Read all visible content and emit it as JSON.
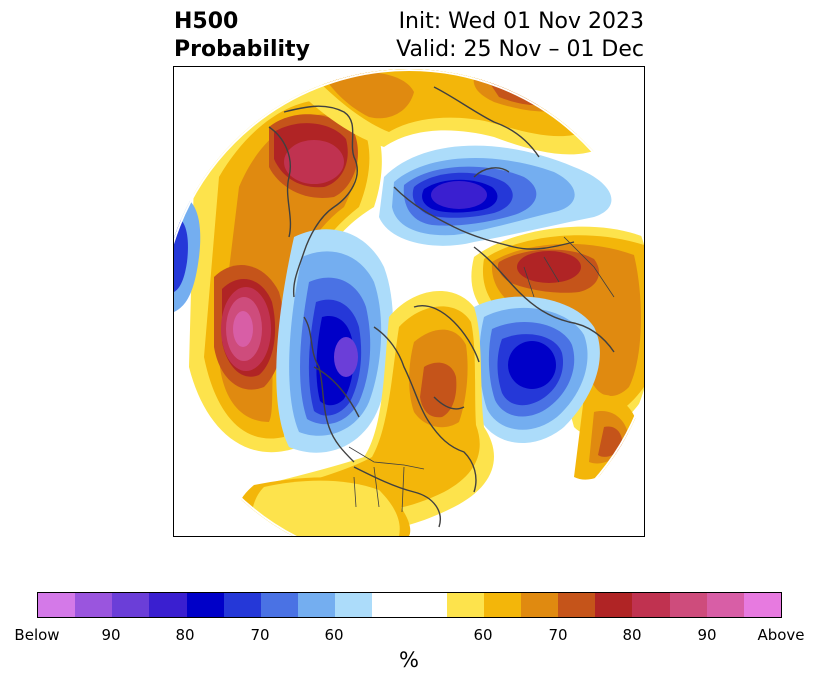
{
  "header": {
    "left_line1": "H500",
    "left_line2": "Probability",
    "right_line1": "Init: Wed 01 Nov 2023",
    "right_line2": "Valid: 25 Nov – 01 Dec"
  },
  "colorbar": {
    "unit": "%",
    "colors_below": [
      "#d479e8",
      "#9a55de",
      "#6b3ed8",
      "#3a1fd0",
      "#0000c8",
      "#2538d8",
      "#4a72e4",
      "#74aef0",
      "#acdcfa"
    ],
    "neutral_color": "#ffffff",
    "colors_above": [
      "#fde34c",
      "#f3b60a",
      "#e08a10",
      "#c5541a",
      "#b02425",
      "#c03250",
      "#ce4c7c",
      "#d85ea6",
      "#e77ae0"
    ],
    "tick_labels": [
      "Below",
      "90",
      "80",
      "70",
      "60",
      "60",
      "70",
      "80",
      "90",
      "Above"
    ]
  },
  "map": {
    "projection": "north-polar-stereographic",
    "outline_color": "#404040"
  }
}
